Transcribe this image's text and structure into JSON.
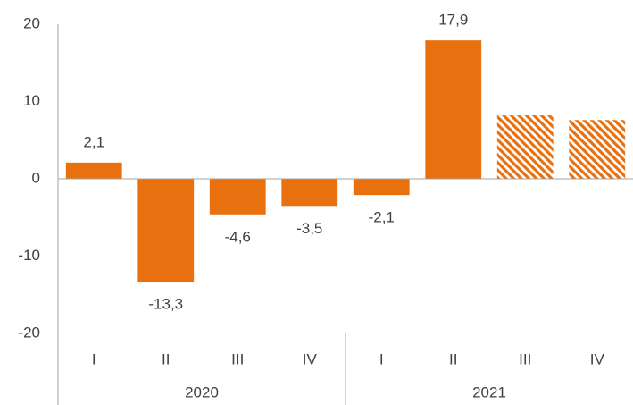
{
  "chart_data": {
    "type": "bar",
    "categories": [
      "I",
      "II",
      "III",
      "IV",
      "I",
      "II",
      "III",
      "IV"
    ],
    "groups": [
      "2020",
      "2021"
    ],
    "values": [
      2.1,
      -13.3,
      -4.6,
      -3.5,
      -2.1,
      17.9,
      8.2,
      7.6
    ],
    "value_labels": [
      "2,1",
      "-13,3",
      "-4,6",
      "-3,5",
      "-2,1",
      "17,9",
      null,
      null
    ],
    "hatched": [
      false,
      false,
      false,
      false,
      false,
      false,
      true,
      true
    ],
    "color": "#e8700e",
    "ylim": [
      -20,
      20
    ],
    "yticks": [
      20,
      10,
      0,
      -10,
      -20
    ],
    "grid": false
  }
}
